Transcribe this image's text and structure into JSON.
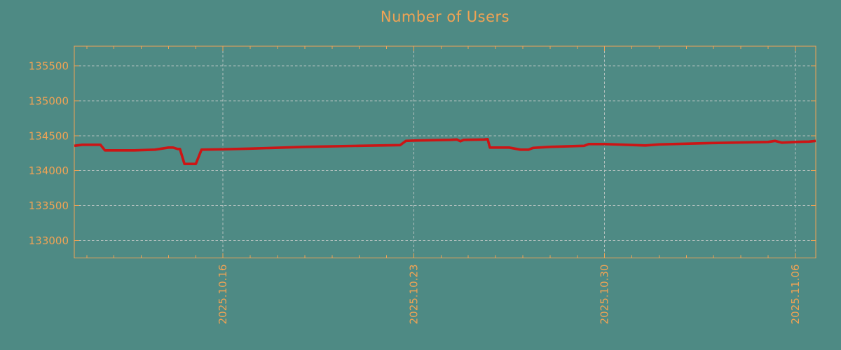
{
  "chart_data": {
    "type": "line",
    "title": "Number of Users",
    "background_color": "#4e8a84",
    "title_color": "#f1a354",
    "axis_color": "#f1a354",
    "tick_label_color": "#f1a354",
    "grid_color": "#b4c1bf",
    "grid_style": "dashed",
    "legend": "none",
    "line_color": "#cc1515",
    "line_width": 3.6,
    "x_axis": {
      "scale": "time",
      "range": [
        "2025-10-10T13:00",
        "2025-11-06T18:00"
      ],
      "major_ticks": [
        {
          "t": "2025-10-16T00:00",
          "label": "2025.10.16"
        },
        {
          "t": "2025-10-23T00:00",
          "label": "2025.10.23"
        },
        {
          "t": "2025-10-30T00:00",
          "label": "2025.10.30"
        },
        {
          "t": "2025-11-06T00:00",
          "label": "2025.11.06"
        }
      ],
      "minor_tick_unit": "day",
      "label_rotation_deg": -90
    },
    "y_axis": {
      "range": [
        132750,
        135780
      ],
      "ticks": [
        135500,
        135000,
        134500,
        134000,
        133500,
        133000
      ],
      "tick_labels": [
        "135500",
        "135000",
        "134500",
        "134000",
        "133500",
        "133000"
      ]
    },
    "series": [
      {
        "name": "Number of Users",
        "color": "#cc1515",
        "points": [
          [
            "2025-10-10T13:00",
            134355
          ],
          [
            "2025-10-10T20:00",
            134370
          ],
          [
            "2025-10-11T12:00",
            134370
          ],
          [
            "2025-10-11T16:00",
            134290
          ],
          [
            "2025-10-12T18:00",
            134290
          ],
          [
            "2025-10-13T12:00",
            134300
          ],
          [
            "2025-10-14T00:00",
            134330
          ],
          [
            "2025-10-14T04:00",
            134330
          ],
          [
            "2025-10-14T08:00",
            134310
          ],
          [
            "2025-10-14T10:00",
            134310
          ],
          [
            "2025-10-14T14:00",
            134095
          ],
          [
            "2025-10-15T00:00",
            134095
          ],
          [
            "2025-10-15T05:00",
            134300
          ],
          [
            "2025-10-16T00:00",
            134305
          ],
          [
            "2025-10-17T00:00",
            134315
          ],
          [
            "2025-10-19T00:00",
            134340
          ],
          [
            "2025-10-21T00:00",
            134355
          ],
          [
            "2025-10-22T12:00",
            134365
          ],
          [
            "2025-10-22T17:00",
            134425
          ],
          [
            "2025-10-23T00:00",
            134430
          ],
          [
            "2025-10-24T08:00",
            134440
          ],
          [
            "2025-10-24T14:00",
            134445
          ],
          [
            "2025-10-24T17:00",
            134420
          ],
          [
            "2025-10-24T20:00",
            134440
          ],
          [
            "2025-10-25T14:00",
            134445
          ],
          [
            "2025-10-25T17:00",
            134450
          ],
          [
            "2025-10-25T19:00",
            134330
          ],
          [
            "2025-10-26T12:00",
            134330
          ],
          [
            "2025-10-26T22:00",
            134300
          ],
          [
            "2025-10-27T05:00",
            134300
          ],
          [
            "2025-10-27T09:00",
            134325
          ],
          [
            "2025-10-28T00:00",
            134340
          ],
          [
            "2025-10-29T06:00",
            134355
          ],
          [
            "2025-10-29T10:00",
            134380
          ],
          [
            "2025-10-30T00:00",
            134380
          ],
          [
            "2025-10-31T12:00",
            134360
          ],
          [
            "2025-11-01T00:00",
            134375
          ],
          [
            "2025-11-03T00:00",
            134395
          ],
          [
            "2025-11-05T00:00",
            134410
          ],
          [
            "2025-11-05T06:00",
            134425
          ],
          [
            "2025-11-05T12:00",
            134400
          ],
          [
            "2025-11-06T00:00",
            134410
          ],
          [
            "2025-11-06T12:00",
            134415
          ],
          [
            "2025-11-06T18:00",
            134425
          ]
        ]
      }
    ]
  }
}
